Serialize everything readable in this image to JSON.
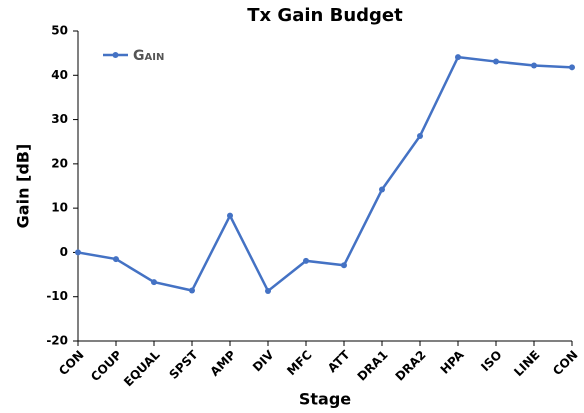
{
  "chart_data": {
    "type": "line",
    "title": "Tx Gain Budget",
    "x_label": "Stage",
    "y_label": "Gain [dB]",
    "categories": [
      "CON",
      "COUP",
      "EQUAL",
      "SPST",
      "AMP",
      "DIV",
      "MFC",
      "ATT",
      "DRA1",
      "DRA2",
      "HPA",
      "ISO",
      "LINE",
      "CON"
    ],
    "series": [
      {
        "name": "Gain",
        "color": "#4472c4",
        "values": [
          0,
          -1.5,
          -6.7,
          -8.6,
          8.3,
          -8.7,
          -1.9,
          -2.9,
          14.2,
          26.3,
          44.1,
          43.1,
          42.2,
          41.8
        ]
      }
    ],
    "ylim": [
      -20,
      50
    ],
    "yticks": [
      -20,
      -10,
      0,
      10,
      20,
      30,
      40,
      50
    ],
    "legend": "upper left",
    "grid": false
  }
}
